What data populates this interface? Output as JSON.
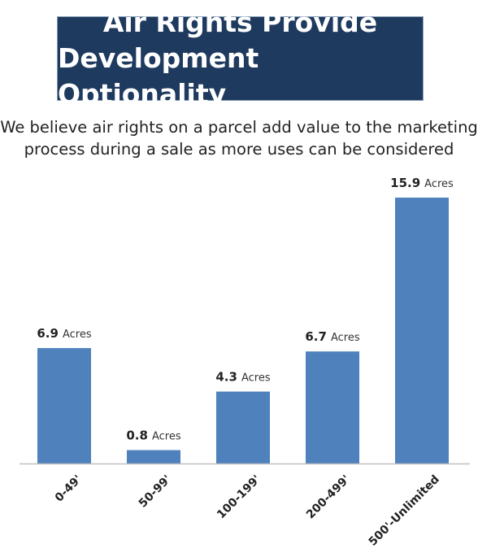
{
  "title_lines": [
    "Air Rights Provide",
    "Development Optionality"
  ],
  "subtitle_lines": [
    "We believe air rights on a parcel add value to the marketing",
    "process during a sale as more uses can be considered"
  ],
  "colors": {
    "bar": "#4f81bd",
    "title_bg": "#1f3a5f",
    "axis": "#bfbfbf"
  },
  "chart_data": {
    "type": "bar",
    "title": "",
    "xlabel": "",
    "ylabel": "",
    "categories": [
      "0-49'",
      "50-99'",
      "100-199'",
      "200-499'",
      "500'-Unlimited"
    ],
    "values": [
      6.9,
      0.8,
      4.3,
      6.7,
      15.9
    ],
    "value_labels": [
      "6.9",
      "0.8",
      "4.3",
      "6.7",
      "15.9"
    ],
    "value_unit": "Acres",
    "ylim": [
      0,
      15.9
    ],
    "grid": false,
    "legend": "none"
  }
}
